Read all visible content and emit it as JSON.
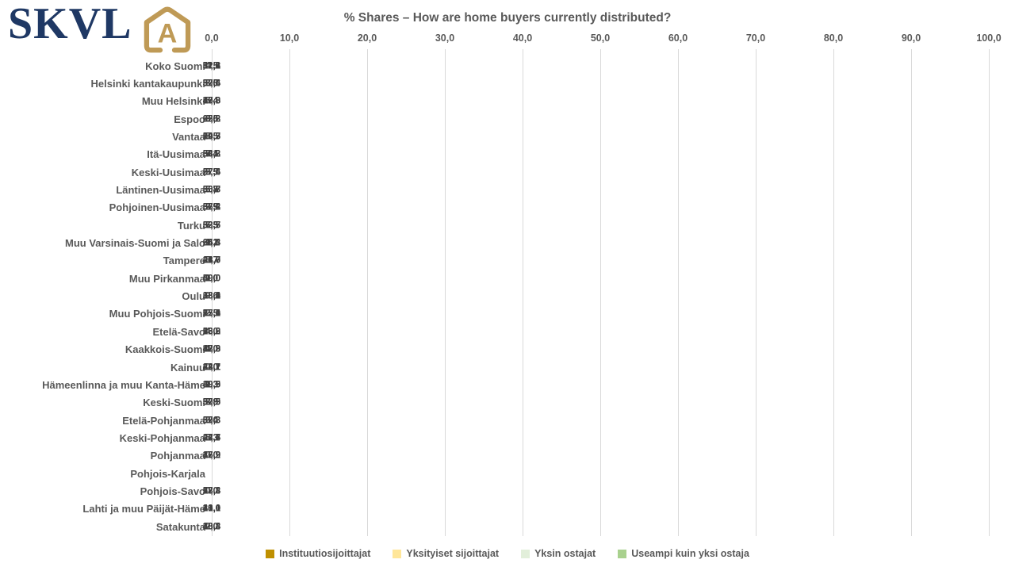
{
  "logo": {
    "text": "SKVL",
    "icon": "house-a-icon",
    "navy_color": "#1F3864",
    "gold_color": "#BF9A56"
  },
  "chart_data": {
    "type": "bar",
    "orientation": "horizontal",
    "stacked": true,
    "title": "% Shares – How are home buyers currently distributed?",
    "xlabel": "",
    "ylabel": "",
    "grid": true,
    "gridline_color": "#D9D9D9",
    "value_labels": true,
    "value_label_color": "#404040",
    "legend_position": "bottom",
    "x_axis": {
      "min": 0,
      "max": 100,
      "tick_interval": 10,
      "tick_labels": [
        "0,0",
        "10,0",
        "20,0",
        "30,0",
        "40,0",
        "50,0",
        "60,0",
        "70,0",
        "80,0",
        "90,0",
        "100,0"
      ]
    },
    "categories": [
      "Koko Suomi",
      "Helsinki kantakaupunki",
      "Muu Helsinki",
      "Espoo",
      "Vantaa",
      "Itä-Uusimaa",
      "Keski-Uusimaa",
      "Läntinen-Uusimaa",
      "Pohjoinen-Uusimaa",
      "Turku",
      "Muu Varsinais-Suomi ja Salo",
      "Tampere",
      "Muu Pirkanmaa",
      "Oulu",
      "Muu Pohjois-Suomi",
      "Etelä-Savo",
      "Kaakkois-Suomi",
      "Kainuu",
      "Hämeenlinna ja muu Kanta-Häme",
      "Keski-Suomi",
      "Etelä-Pohjanmaa",
      "Keski-Pohjanmaa",
      "Pohjanmaa",
      "Pohjois-Karjala",
      "Pohjois-Savo",
      "Lahti ja muu Päijät-Häme",
      "Satakunta"
    ],
    "series": [
      {
        "name": "Instituutiosijoittajat",
        "color": "#BF9000",
        "values": [
          4.5,
          3.5,
          5.4,
          3.5,
          5.5,
          5.4,
          5.5,
          5.8,
          2.5,
          6.3,
          1.1,
          5.7,
          0.0,
          9.6,
          2.5,
          4.0,
          1.0,
          0.0,
          1.3,
          2.9,
          0.0,
          5.3,
          0.0,
          null,
          0.0,
          13.1,
          2.0
        ]
      },
      {
        "name": "Yksityiset sijoittajat",
        "color": "#FFE699",
        "values": [
          11.6,
          8.6,
          10.0,
          8.6,
          10.7,
          7.1,
          9.5,
          6.7,
          3.9,
          7.5,
          9.2,
          21.0,
          1.0,
          18.4,
          17.1,
          13.2,
          12.9,
          34.1,
          9.3,
          8.8,
          3.4,
          27.6,
          16.2,
          null,
          13.8,
          16.0,
          10.8
        ]
      },
      {
        "name": "Yksin ostajat",
        "color": "#E2EFDA",
        "values": [
          31.8,
          30.6,
          36.8,
          25.8,
          29.3,
          34.3,
          27.6,
          30.7,
          37.4,
          32.7,
          25.4,
          28.7,
          40.0,
          33.1,
          25.0,
          26.0,
          38.3,
          22.7,
          39.9,
          30.9,
          37.3,
          22.7,
          47.9,
          null,
          28.8,
          31.0,
          38.4
        ]
      },
      {
        "name": "Useampi kuin yksi ostaja",
        "color": "#A9D18E",
        "values": [
          52.1,
          57.4,
          47.8,
          62.2,
          54.5,
          53.2,
          57.4,
          56.8,
          56.2,
          53.5,
          64.3,
          44.6,
          59.0,
          38.9,
          55.4,
          56.8,
          47.8,
          43.2,
          49.5,
          57.5,
          59.3,
          44.4,
          35.9,
          null,
          57.4,
          40.0,
          48.8
        ]
      }
    ],
    "number_format": "fi-decimal-comma-1"
  }
}
